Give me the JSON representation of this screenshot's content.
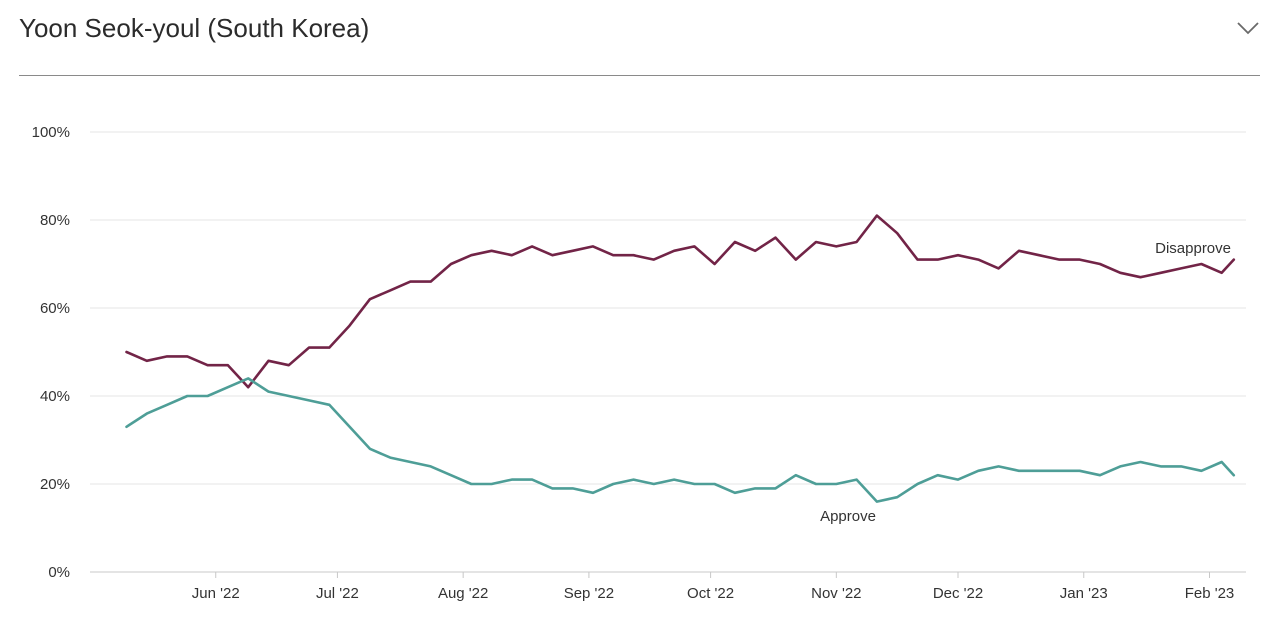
{
  "header": {
    "title": "Yoon Seok-youl (South Korea)",
    "toggle_icon": "chevron-down-icon"
  },
  "colors": {
    "disapprove": "#722447",
    "approve": "#4e9e97",
    "grid": "#e6e6e6",
    "axis": "#c8c8c8"
  },
  "chart_data": {
    "type": "line",
    "title": "Yoon Seok-youl (South Korea)",
    "xlabel": "",
    "ylabel": "",
    "ylim": [
      0,
      100
    ],
    "yticks": [
      "0%",
      "20%",
      "40%",
      "60%",
      "80%",
      "100%"
    ],
    "ytick_values": [
      0,
      20,
      40,
      60,
      80,
      100
    ],
    "xticks": [
      "Jun '22",
      "Jul '22",
      "Aug '22",
      "Sep '22",
      "Oct '22",
      "Nov '22",
      "Dec '22",
      "Jan '23",
      "Feb '23"
    ],
    "xtick_dates": [
      "2022-06-01",
      "2022-07-01",
      "2022-08-01",
      "2022-09-01",
      "2022-10-01",
      "2022-11-01",
      "2022-12-01",
      "2023-01-01",
      "2023-02-01"
    ],
    "xlim": [
      "2022-05-01",
      "2023-02-10"
    ],
    "grid": true,
    "legend": "inline labels",
    "series": [
      {
        "name": "Disapprove",
        "key": "disapprove",
        "x": [
          "2022-05-10",
          "2022-05-15",
          "2022-05-20",
          "2022-05-25",
          "2022-05-30",
          "2022-06-04",
          "2022-06-09",
          "2022-06-14",
          "2022-06-19",
          "2022-06-24",
          "2022-06-29",
          "2022-07-04",
          "2022-07-09",
          "2022-07-14",
          "2022-07-19",
          "2022-07-24",
          "2022-07-29",
          "2022-08-03",
          "2022-08-08",
          "2022-08-13",
          "2022-08-18",
          "2022-08-23",
          "2022-08-28",
          "2022-09-02",
          "2022-09-07",
          "2022-09-12",
          "2022-09-17",
          "2022-09-22",
          "2022-09-27",
          "2022-10-02",
          "2022-10-07",
          "2022-10-12",
          "2022-10-17",
          "2022-10-22",
          "2022-10-27",
          "2022-11-01",
          "2022-11-06",
          "2022-11-11",
          "2022-11-16",
          "2022-11-21",
          "2022-11-26",
          "2022-12-01",
          "2022-12-06",
          "2022-12-11",
          "2022-12-16",
          "2022-12-21",
          "2022-12-26",
          "2022-12-31",
          "2023-01-05",
          "2023-01-10",
          "2023-01-15",
          "2023-01-20",
          "2023-01-25",
          "2023-01-30",
          "2023-02-04",
          "2023-02-07"
        ],
        "values": [
          50,
          48,
          49,
          49,
          47,
          47,
          42,
          48,
          47,
          51,
          51,
          56,
          62,
          64,
          66,
          66,
          70,
          72,
          73,
          72,
          74,
          72,
          73,
          74,
          72,
          72,
          71,
          73,
          74,
          70,
          75,
          73,
          76,
          71,
          75,
          74,
          75,
          81,
          77,
          71,
          71,
          72,
          71,
          69,
          73,
          72,
          71,
          71,
          70,
          68,
          67,
          68,
          69,
          70,
          68,
          71
        ]
      },
      {
        "name": "Approve",
        "key": "approve",
        "x": [
          "2022-05-10",
          "2022-05-15",
          "2022-05-20",
          "2022-05-25",
          "2022-05-30",
          "2022-06-04",
          "2022-06-09",
          "2022-06-14",
          "2022-06-19",
          "2022-06-24",
          "2022-06-29",
          "2022-07-04",
          "2022-07-09",
          "2022-07-14",
          "2022-07-19",
          "2022-07-24",
          "2022-07-29",
          "2022-08-03",
          "2022-08-08",
          "2022-08-13",
          "2022-08-18",
          "2022-08-23",
          "2022-08-28",
          "2022-09-02",
          "2022-09-07",
          "2022-09-12",
          "2022-09-17",
          "2022-09-22",
          "2022-09-27",
          "2022-10-02",
          "2022-10-07",
          "2022-10-12",
          "2022-10-17",
          "2022-10-22",
          "2022-10-27",
          "2022-11-01",
          "2022-11-06",
          "2022-11-11",
          "2022-11-16",
          "2022-11-21",
          "2022-11-26",
          "2022-12-01",
          "2022-12-06",
          "2022-12-11",
          "2022-12-16",
          "2022-12-21",
          "2022-12-26",
          "2022-12-31",
          "2023-01-05",
          "2023-01-10",
          "2023-01-15",
          "2023-01-20",
          "2023-01-25",
          "2023-01-30",
          "2023-02-04",
          "2023-02-07"
        ],
        "values": [
          33,
          36,
          38,
          40,
          40,
          42,
          44,
          41,
          40,
          39,
          38,
          33,
          28,
          26,
          25,
          24,
          22,
          20,
          20,
          21,
          21,
          19,
          19,
          18,
          20,
          21,
          20,
          21,
          20,
          20,
          18,
          19,
          19,
          22,
          20,
          20,
          21,
          16,
          17,
          20,
          22,
          21,
          23,
          24,
          23,
          23,
          23,
          23,
          22,
          24,
          25,
          24,
          24,
          23,
          25,
          22
        ]
      }
    ]
  }
}
